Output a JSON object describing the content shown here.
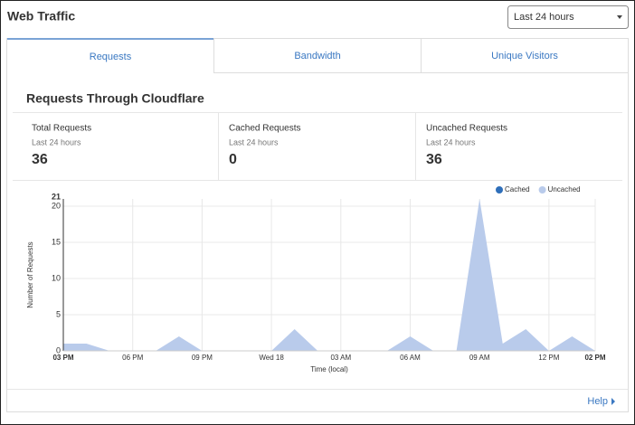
{
  "header": {
    "title": "Web Traffic",
    "range": "Last 24 hours"
  },
  "tabs": [
    "Requests",
    "Bandwidth",
    "Unique Visitors"
  ],
  "section_title": "Requests Through Cloudflare",
  "stats": [
    {
      "label": "Total Requests",
      "period": "Last 24 hours",
      "value": 36
    },
    {
      "label": "Cached Requests",
      "period": "Last 24 hours",
      "value": 0
    },
    {
      "label": "Uncached Requests",
      "period": "Last 24 hours",
      "value": 36
    }
  ],
  "chart_data": {
    "type": "area",
    "y_label": "Number of Requests",
    "x_label": "Time (local)",
    "categories": [
      "03 PM",
      null,
      null,
      "06 PM",
      null,
      null,
      "09 PM",
      null,
      null,
      "Wed 18",
      null,
      null,
      "03 AM",
      null,
      null,
      "06 AM",
      null,
      null,
      "09 AM",
      null,
      null,
      "12 PM",
      null,
      "02 PM"
    ],
    "series": [
      {
        "name": "Cached",
        "color": "#2f6fba",
        "values": [
          0,
          0,
          0,
          0,
          0,
          0,
          0,
          0,
          0,
          0,
          0,
          0,
          0,
          0,
          0,
          0,
          0,
          0,
          0,
          0,
          0,
          0,
          0,
          0
        ]
      },
      {
        "name": "Uncached",
        "color": "#b9cbeb",
        "values": [
          1,
          1,
          0,
          0,
          0,
          2,
          0,
          0,
          0,
          0,
          3,
          0,
          0,
          0,
          0,
          2,
          0,
          0,
          21,
          1,
          3,
          0,
          2,
          0
        ]
      }
    ],
    "ylim": [
      0,
      21
    ],
    "yticks": [
      0,
      5,
      10,
      15,
      20,
      21
    ],
    "grid": true,
    "legend": "top-right"
  },
  "footer": {
    "help": "Help"
  }
}
